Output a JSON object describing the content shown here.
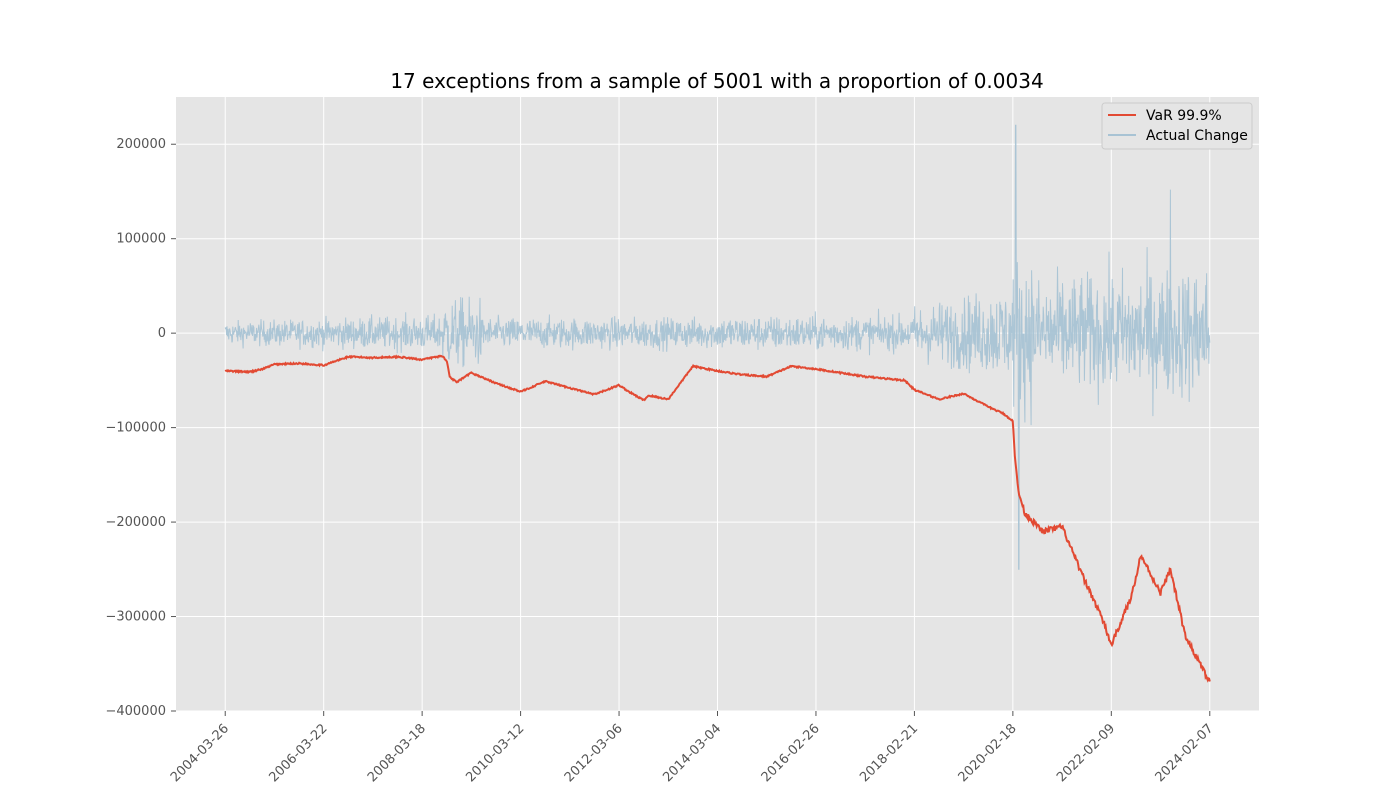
{
  "chart_data": {
    "type": "line",
    "title": "17 exceptions from a sample of 5001 with a proportion of 0.0034",
    "xlabel": "",
    "ylabel": "",
    "x_tick_labels": [
      "2004-03-26",
      "2006-03-22",
      "2008-03-18",
      "2010-03-12",
      "2012-03-06",
      "2014-03-04",
      "2016-02-26",
      "2018-02-21",
      "2020-02-18",
      "2022-02-09",
      "2024-02-07"
    ],
    "y_ticks": [
      200000,
      100000,
      0,
      -100000,
      -200000,
      -300000,
      -400000
    ],
    "y_tick_labels": [
      "200000",
      "100000",
      "0",
      "−100000",
      "−200000",
      "−300000",
      "−400000"
    ],
    "ylim": [
      -400000,
      250000
    ],
    "xlim": [
      -0.5,
      10.5
    ],
    "grid": true,
    "legend_position": "top-right",
    "n_samples": 5001,
    "exceptions": 17,
    "proportion": 0.0034,
    "series": [
      {
        "name": "VaR 99.9%",
        "color": "#e24a33",
        "x": [
          0,
          0.25,
          0.38,
          0.5,
          0.75,
          1.0,
          1.25,
          1.5,
          1.75,
          2.0,
          2.2,
          2.25,
          2.28,
          2.35,
          2.5,
          2.75,
          3.0,
          3.25,
          3.5,
          3.75,
          4.0,
          4.1,
          4.25,
          4.3,
          4.5,
          4.75,
          5.0,
          5.25,
          5.5,
          5.75,
          6.0,
          6.5,
          6.9,
          7.0,
          7.25,
          7.5,
          7.75,
          7.9,
          8.0,
          8.02,
          8.06,
          8.12,
          8.3,
          8.5,
          8.7,
          8.9,
          9.0,
          9.2,
          9.3,
          9.5,
          9.6,
          9.75,
          10.0
        ],
        "values": [
          -40000,
          -41000,
          -38000,
          -33000,
          -32000,
          -34000,
          -25000,
          -26000,
          -25000,
          -28000,
          -24000,
          -29000,
          -46000,
          -52000,
          -42000,
          -53000,
          -62000,
          -51000,
          -58000,
          -65000,
          -55000,
          -62000,
          -71000,
          -66000,
          -70000,
          -35000,
          -40000,
          -44000,
          -46000,
          -35000,
          -38000,
          -46000,
          -50000,
          -60000,
          -70000,
          -64000,
          -78000,
          -85000,
          -93000,
          -130000,
          -170000,
          -190000,
          -210000,
          -205000,
          -255000,
          -300000,
          -330000,
          -280000,
          -235000,
          -275000,
          -250000,
          -320000,
          -370000
        ]
      },
      {
        "name": "Actual Change",
        "color": "#a8c3d4",
        "values": []
      }
    ]
  },
  "legend": {
    "items": [
      {
        "label": "VaR 99.9%",
        "color": "#e24a33"
      },
      {
        "label": "Actual Change",
        "color": "#a8c3d4"
      }
    ]
  }
}
